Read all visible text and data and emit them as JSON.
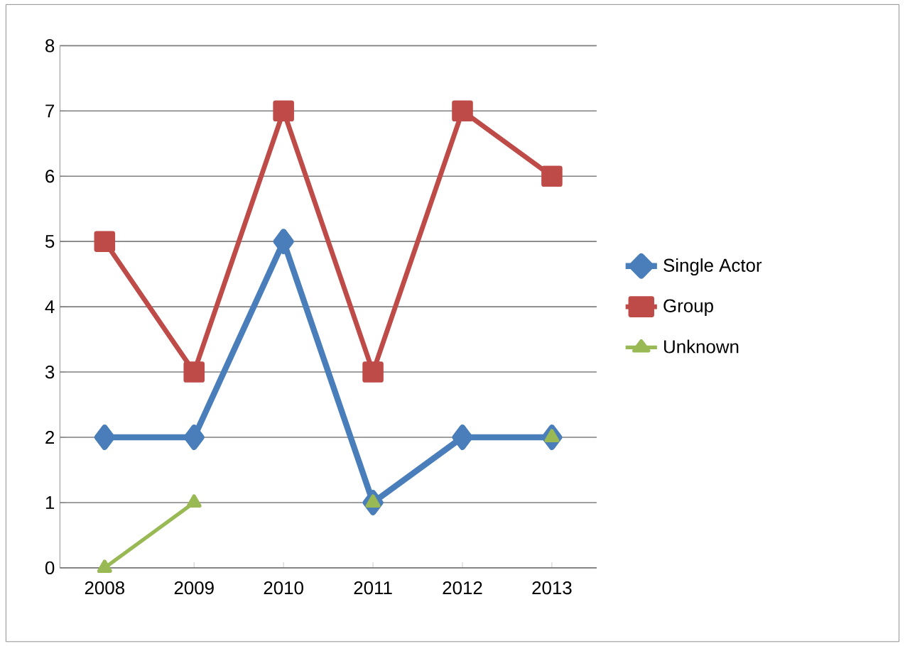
{
  "chart_data": {
    "type": "line",
    "categories": [
      "2008",
      "2009",
      "2010",
      "2011",
      "2012",
      "2013"
    ],
    "series": [
      {
        "name": "Single Actor",
        "color": "#4a7ebb",
        "marker": "diamond",
        "values": [
          2,
          2,
          5,
          1,
          2,
          2
        ]
      },
      {
        "name": "Group",
        "color": "#be4b48",
        "marker": "square",
        "values": [
          5,
          3,
          7,
          3,
          7,
          6
        ]
      },
      {
        "name": "Unknown",
        "color": "#98b954",
        "marker": "triangle",
        "values": [
          0,
          1,
          null,
          1,
          null,
          2
        ]
      }
    ],
    "ylim": [
      0,
      8
    ],
    "yticks": [
      0,
      1,
      2,
      3,
      4,
      5,
      6,
      7,
      8
    ],
    "grid": "y",
    "legend": "right"
  }
}
